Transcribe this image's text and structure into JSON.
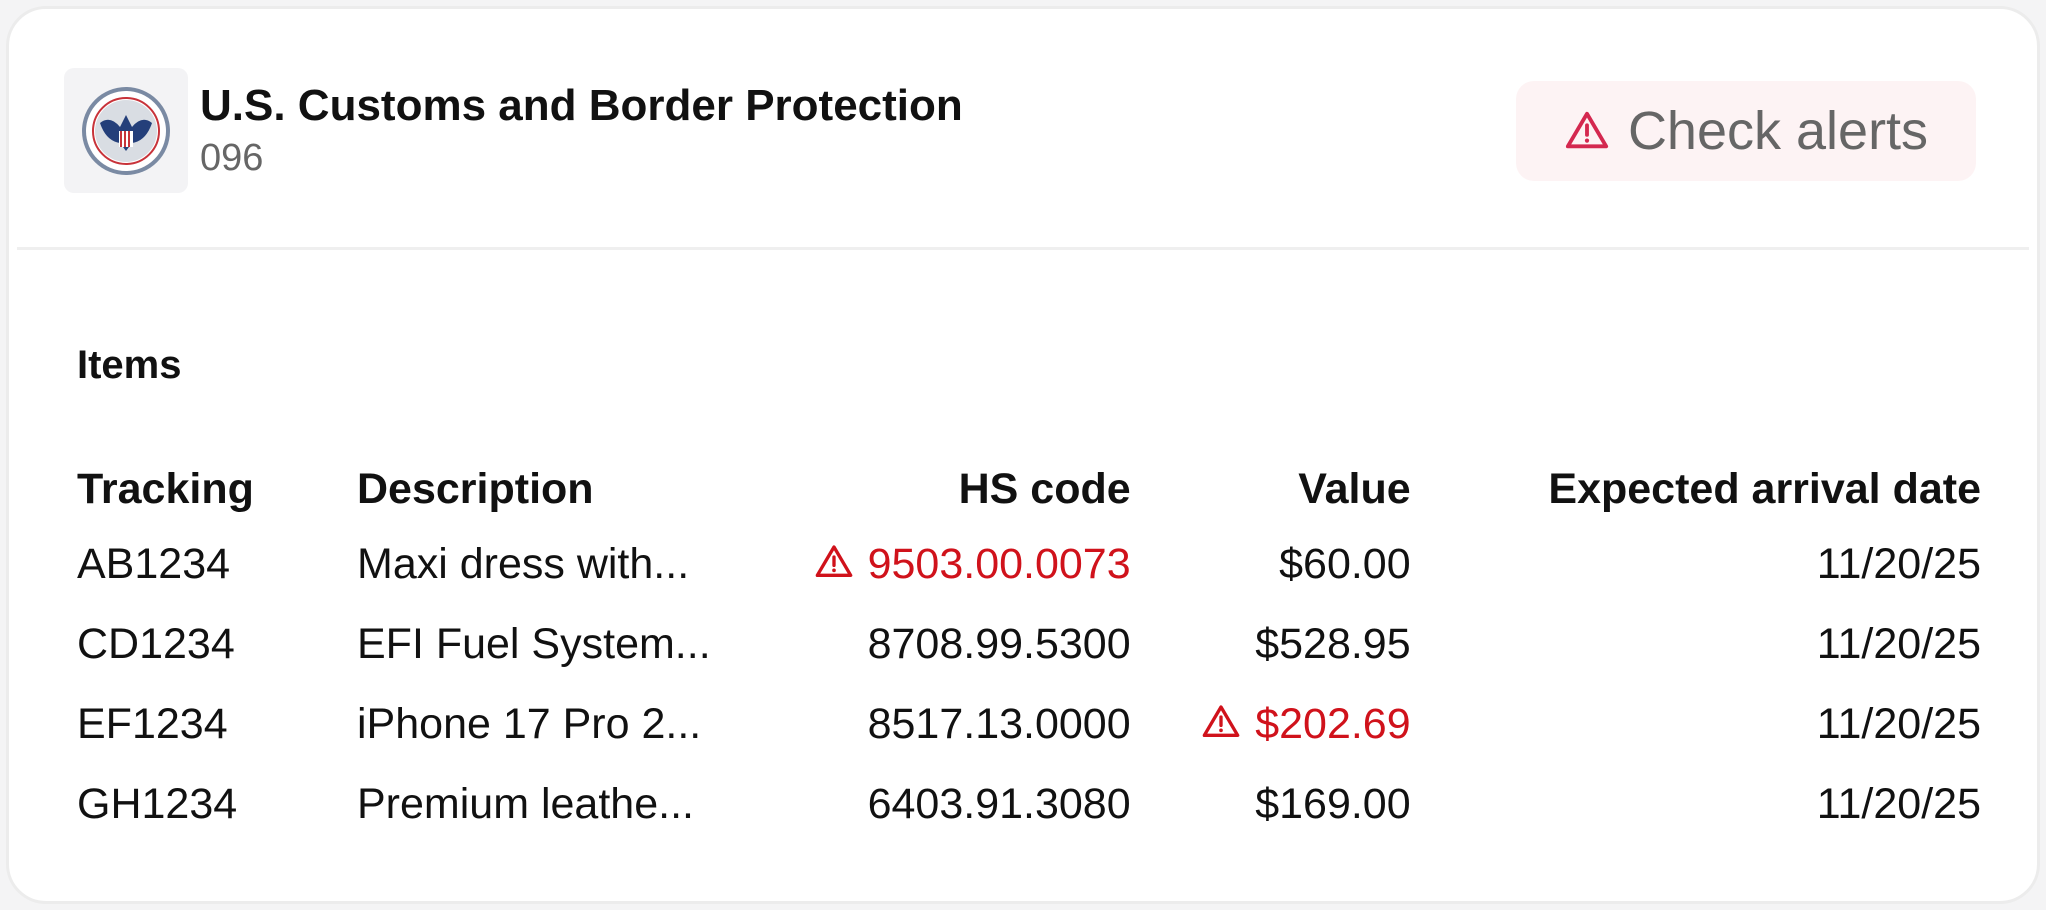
{
  "agency": {
    "name": "U.S. Customs and Border Protection",
    "code": "096",
    "logo": "cbp-seal"
  },
  "alerts_button": {
    "label": "Check alerts",
    "icon": "warning-triangle-icon",
    "icon_color": "#d4284f"
  },
  "section_title": "Items",
  "table": {
    "columns": [
      "Tracking",
      "Description",
      "HS code",
      "Value",
      "Expected arrival date"
    ],
    "rows": [
      {
        "tracking": "AB1234",
        "description": "Maxi dress with...",
        "hs_code": "9503.00.0073",
        "hs_alert": true,
        "value": "$60.00",
        "value_alert": false,
        "date": "11/20/25"
      },
      {
        "tracking": "CD1234",
        "description": "EFI Fuel System...",
        "hs_code": "8708.99.5300",
        "hs_alert": false,
        "value": "$528.95",
        "value_alert": false,
        "date": "11/20/25"
      },
      {
        "tracking": "EF1234",
        "description": "iPhone 17 Pro 2...",
        "hs_code": "8517.13.0000",
        "hs_alert": false,
        "value": "$202.69",
        "value_alert": true,
        "date": "11/20/25"
      },
      {
        "tracking": "GH1234",
        "description": "Premium leathe...",
        "hs_code": "6403.91.3080",
        "hs_alert": false,
        "value": "$169.00",
        "value_alert": false,
        "date": "11/20/25"
      }
    ]
  },
  "colors": {
    "alert": "#d0121b",
    "button_bg": "#fdf3f4"
  }
}
